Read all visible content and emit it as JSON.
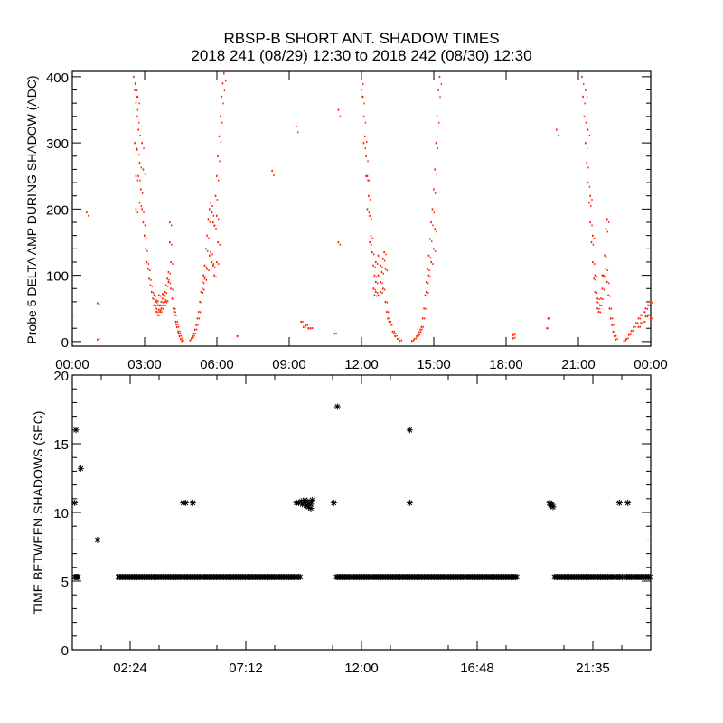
{
  "chart_data": [
    {
      "type": "scatter",
      "title": "RBSP-B SHORT ANT. SHADOW TIMES",
      "subtitle": "2018 241 (08/29) 12:30 to 2018 242 (08/30) 12:30",
      "xlabel": "",
      "ylabel": "Probe 5 DELTA AMP DURING SHADOW (ADC)",
      "x_units": "hours",
      "xlim": [
        0,
        24
      ],
      "ylim": [
        -7,
        408
      ],
      "x_ticks": [
        0,
        3,
        6,
        9,
        12,
        15,
        18,
        21,
        24
      ],
      "x_tick_labels": [
        "00:00",
        "03:00",
        "06:00",
        "09:00",
        "12:00",
        "15:00",
        "18:00",
        "21:00",
        "00:00"
      ],
      "y_ticks": [
        0,
        100,
        200,
        300,
        400
      ],
      "y_tick_labels": [
        "0",
        "100",
        "200",
        "300",
        "400"
      ],
      "grid": false,
      "color": "#ff2000",
      "points": [
        [
          2.55,
          400
        ],
        [
          2.6,
          380
        ],
        [
          2.65,
          360
        ],
        [
          2.7,
          340
        ],
        [
          2.75,
          320
        ],
        [
          2.6,
          300
        ],
        [
          2.7,
          290
        ],
        [
          2.8,
          270
        ],
        [
          2.75,
          250
        ],
        [
          2.85,
          230
        ],
        [
          2.8,
          210
        ],
        [
          2.9,
          200
        ],
        [
          2.95,
          180
        ],
        [
          3.0,
          160
        ],
        [
          3.05,
          140
        ],
        [
          3.1,
          120
        ],
        [
          3.15,
          110
        ],
        [
          3.2,
          95
        ],
        [
          3.25,
          85
        ],
        [
          2.65,
          250
        ],
        [
          2.65,
          200
        ],
        [
          2.9,
          300
        ],
        [
          2.95,
          260
        ],
        [
          2.62,
          390
        ],
        [
          2.72,
          370
        ],
        [
          3.3,
          75
        ],
        [
          3.35,
          65
        ],
        [
          3.4,
          55
        ],
        [
          3.45,
          50
        ],
        [
          3.5,
          45
        ],
        [
          3.55,
          40
        ],
        [
          3.6,
          48
        ],
        [
          3.65,
          55
        ],
        [
          3.7,
          60
        ],
        [
          3.75,
          65
        ],
        [
          3.8,
          70
        ],
        [
          3.85,
          75
        ],
        [
          3.9,
          85
        ],
        [
          3.95,
          95
        ],
        [
          4.0,
          105
        ],
        [
          3.4,
          70
        ],
        [
          3.5,
          62
        ],
        [
          3.6,
          70
        ],
        [
          3.7,
          50
        ],
        [
          3.8,
          55
        ],
        [
          3.9,
          62
        ],
        [
          4.05,
          150
        ],
        [
          4.05,
          180
        ],
        [
          4.1,
          120
        ],
        [
          4.0,
          90
        ],
        [
          3.45,
          60
        ],
        [
          3.55,
          55
        ],
        [
          3.65,
          45
        ],
        [
          3.75,
          72
        ],
        [
          3.85,
          60
        ],
        [
          4.1,
          80
        ],
        [
          4.15,
          65
        ],
        [
          4.2,
          50
        ],
        [
          4.25,
          40
        ],
        [
          4.3,
          30
        ],
        [
          4.35,
          22
        ],
        [
          4.4,
          15
        ],
        [
          4.45,
          8
        ],
        [
          4.5,
          4
        ],
        [
          4.55,
          1
        ],
        [
          4.22,
          45
        ],
        [
          4.32,
          26
        ],
        [
          4.42,
          12
        ],
        [
          4.9,
          2
        ],
        [
          4.95,
          5
        ],
        [
          5.0,
          8
        ],
        [
          5.05,
          12
        ],
        [
          5.1,
          18
        ],
        [
          5.15,
          25
        ],
        [
          5.2,
          35
        ],
        [
          5.25,
          45
        ],
        [
          5.3,
          60
        ],
        [
          5.35,
          75
        ],
        [
          5.4,
          90
        ],
        [
          5.45,
          100
        ],
        [
          5.5,
          115
        ],
        [
          5.55,
          140
        ],
        [
          5.6,
          160
        ],
        [
          5.65,
          185
        ],
        [
          5.7,
          200
        ],
        [
          5.75,
          210
        ],
        [
          5.8,
          195
        ],
        [
          5.85,
          180
        ],
        [
          5.9,
          175
        ],
        [
          5.6,
          110
        ],
        [
          5.7,
          130
        ],
        [
          5.8,
          120
        ],
        [
          5.9,
          100
        ],
        [
          5.95,
          220
        ],
        [
          6.0,
          250
        ],
        [
          6.05,
          280
        ],
        [
          6.1,
          310
        ],
        [
          6.15,
          340
        ],
        [
          6.2,
          370
        ],
        [
          6.25,
          390
        ],
        [
          6.3,
          405
        ],
        [
          6.0,
          190
        ],
        [
          6.05,
          150
        ],
        [
          6.0,
          120
        ],
        [
          5.75,
          135
        ],
        [
          5.85,
          115
        ],
        [
          5.5,
          95
        ],
        [
          5.4,
          80
        ],
        [
          12.0,
          400
        ],
        [
          12.05,
          370
        ],
        [
          12.1,
          340
        ],
        [
          12.15,
          310
        ],
        [
          12.2,
          280
        ],
        [
          12.25,
          250
        ],
        [
          12.3,
          220
        ],
        [
          12.35,
          190
        ],
        [
          12.4,
          160
        ],
        [
          12.45,
          135
        ],
        [
          12.5,
          115
        ],
        [
          12.55,
          100
        ],
        [
          12.6,
          90
        ],
        [
          12.0,
          380
        ],
        [
          12.1,
          300
        ],
        [
          12.2,
          250
        ],
        [
          12.25,
          200
        ],
        [
          12.35,
          150
        ],
        [
          12.5,
          80
        ],
        [
          12.6,
          75
        ],
        [
          12.7,
          70
        ],
        [
          12.8,
          75
        ],
        [
          12.9,
          80
        ],
        [
          12.7,
          100
        ],
        [
          12.8,
          115
        ],
        [
          12.9,
          125
        ],
        [
          12.95,
          135
        ],
        [
          12.8,
          90
        ],
        [
          13.0,
          110
        ],
        [
          12.6,
          120
        ],
        [
          12.7,
          130
        ],
        [
          12.55,
          70
        ],
        [
          12.85,
          105
        ],
        [
          13.0,
          60
        ],
        [
          13.05,
          45
        ],
        [
          13.1,
          35
        ],
        [
          13.2,
          25
        ],
        [
          13.3,
          15
        ],
        [
          13.4,
          8
        ],
        [
          13.5,
          4
        ],
        [
          13.6,
          1
        ],
        [
          13.15,
          30
        ],
        [
          13.35,
          12
        ],
        [
          14.1,
          1
        ],
        [
          14.2,
          4
        ],
        [
          14.3,
          8
        ],
        [
          14.4,
          14
        ],
        [
          14.5,
          22
        ],
        [
          14.55,
          35
        ],
        [
          14.6,
          50
        ],
        [
          14.65,
          70
        ],
        [
          14.7,
          90
        ],
        [
          14.75,
          110
        ],
        [
          14.8,
          130
        ],
        [
          14.85,
          155
        ],
        [
          14.9,
          180
        ],
        [
          14.95,
          200
        ],
        [
          15.0,
          230
        ],
        [
          15.05,
          260
        ],
        [
          15.1,
          300
        ],
        [
          15.15,
          340
        ],
        [
          15.2,
          380
        ],
        [
          15.25,
          400
        ],
        [
          14.7,
          75
        ],
        [
          14.8,
          100
        ],
        [
          14.9,
          120
        ],
        [
          15.0,
          140
        ],
        [
          15.05,
          170
        ],
        [
          14.35,
          10
        ],
        [
          14.45,
          18
        ],
        [
          21.15,
          400
        ],
        [
          21.2,
          370
        ],
        [
          21.25,
          340
        ],
        [
          21.3,
          300
        ],
        [
          21.35,
          270
        ],
        [
          21.4,
          240
        ],
        [
          21.45,
          210
        ],
        [
          21.5,
          180
        ],
        [
          21.55,
          150
        ],
        [
          21.6,
          120
        ],
        [
          21.65,
          95
        ],
        [
          21.7,
          75
        ],
        [
          21.75,
          60
        ],
        [
          21.8,
          50
        ],
        [
          21.85,
          45
        ],
        [
          21.9,
          55
        ],
        [
          21.95,
          65
        ],
        [
          22.0,
          80
        ],
        [
          22.05,
          100
        ],
        [
          22.1,
          130
        ],
        [
          22.15,
          170
        ],
        [
          22.2,
          185
        ],
        [
          22.15,
          110
        ],
        [
          22.2,
          90
        ],
        [
          22.25,
          70
        ],
        [
          22.3,
          50
        ],
        [
          22.35,
          35
        ],
        [
          22.4,
          25
        ],
        [
          22.45,
          15
        ],
        [
          22.5,
          8
        ],
        [
          22.55,
          3
        ],
        [
          21.3,
          380
        ],
        [
          21.5,
          220
        ],
        [
          21.6,
          160
        ],
        [
          21.4,
          320
        ],
        [
          21.7,
          100
        ],
        [
          21.8,
          65
        ],
        [
          22.0,
          100
        ],
        [
          22.9,
          1
        ],
        [
          23.0,
          4
        ],
        [
          23.1,
          10
        ],
        [
          23.2,
          16
        ],
        [
          23.3,
          22
        ],
        [
          23.4,
          28
        ],
        [
          23.5,
          35
        ],
        [
          23.6,
          40
        ],
        [
          23.7,
          45
        ],
        [
          23.8,
          50
        ],
        [
          23.9,
          55
        ],
        [
          24.0,
          60
        ],
        [
          23.5,
          22
        ],
        [
          23.7,
          30
        ],
        [
          23.9,
          40
        ],
        [
          24.0,
          35
        ],
        [
          23.6,
          28
        ],
        [
          23.8,
          38
        ],
        [
          0.6,
          195
        ],
        [
          1.05,
          58
        ],
        [
          1.05,
          3
        ],
        [
          6.85,
          8
        ],
        [
          8.3,
          258
        ],
        [
          9.3,
          325
        ],
        [
          9.5,
          30
        ],
        [
          9.6,
          22
        ],
        [
          9.7,
          25
        ],
        [
          9.8,
          20
        ],
        [
          9.9,
          20
        ],
        [
          10.9,
          12
        ],
        [
          11.05,
          350
        ],
        [
          11.05,
          150
        ],
        [
          18.3,
          5
        ],
        [
          18.3,
          10
        ],
        [
          19.7,
          20
        ],
        [
          19.75,
          35
        ],
        [
          20.1,
          320
        ]
      ]
    },
    {
      "type": "scatter",
      "marker": "asterisk",
      "xlabel": "",
      "ylabel": "TIME BETWEEN SHADOWS (SEC)",
      "x_units": "hours",
      "xlim": [
        0,
        24
      ],
      "ylim": [
        0,
        20
      ],
      "x_ticks": [
        2.4,
        7.2,
        12.0,
        16.8,
        21.6
      ],
      "x_tick_labels": [
        "02:24",
        "07:12",
        "12:00",
        "16:48",
        "21:35"
      ],
      "y_ticks": [
        0,
        5,
        10,
        15,
        20
      ],
      "y_tick_labels": [
        "0",
        "5",
        "10",
        "15",
        "20"
      ],
      "grid": false,
      "color": "#000000",
      "points": [
        [
          0.1,
          5.3
        ],
        [
          0.15,
          5.3
        ],
        [
          0.2,
          5.3
        ],
        [
          0.25,
          5.3
        ],
        [
          0.1,
          10.7
        ],
        [
          0.15,
          16.0
        ],
        [
          0.35,
          13.2
        ],
        [
          1.05,
          8.0
        ],
        [
          4.6,
          10.7
        ],
        [
          4.7,
          10.7
        ],
        [
          5.0,
          10.7
        ],
        [
          9.3,
          10.7
        ],
        [
          9.4,
          10.7
        ],
        [
          9.5,
          10.8
        ],
        [
          9.55,
          10.6
        ],
        [
          9.6,
          10.7
        ],
        [
          9.65,
          10.9
        ],
        [
          9.7,
          10.5
        ],
        [
          9.75,
          10.8
        ],
        [
          9.8,
          10.4
        ],
        [
          9.85,
          10.7
        ],
        [
          9.9,
          10.6
        ],
        [
          9.95,
          10.9
        ],
        [
          9.9,
          10.3
        ],
        [
          10.85,
          10.7
        ],
        [
          11.0,
          17.7
        ],
        [
          14.0,
          16.0
        ],
        [
          14.0,
          10.7
        ],
        [
          19.8,
          10.7
        ],
        [
          19.85,
          10.5
        ],
        [
          19.9,
          10.6
        ],
        [
          19.95,
          10.4
        ],
        [
          22.7,
          10.7
        ],
        [
          23.05,
          10.7
        ]
      ],
      "runs": [
        {
          "start": 1.9,
          "end": 9.5,
          "value": 5.3
        },
        {
          "start": 10.95,
          "end": 18.45,
          "value": 5.3
        },
        {
          "start": 20.0,
          "end": 22.85,
          "value": 5.3
        },
        {
          "start": 22.95,
          "end": 24.0,
          "value": 5.3
        }
      ]
    }
  ]
}
